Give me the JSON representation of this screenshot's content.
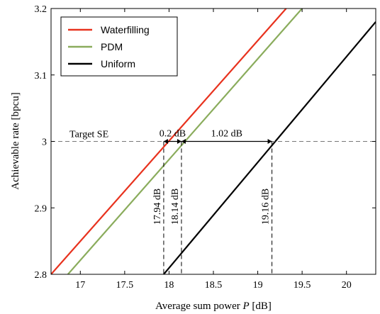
{
  "chart_data": {
    "type": "line",
    "xlabel_prefix": "Average sum power ",
    "xlabel_var": "P",
    "xlabel_suffix": " [dB]",
    "ylabel": "Achievable rate [bpcu]",
    "xlim": [
      16.67,
      20.33
    ],
    "ylim": [
      2.8,
      3.2
    ],
    "x_ticks": [
      17,
      17.5,
      18,
      18.5,
      19,
      19.5,
      20
    ],
    "x_tick_labels": [
      "17",
      "17.5",
      "18",
      "18.5",
      "19",
      "19.5",
      "20"
    ],
    "y_ticks": [
      2.8,
      2.9,
      3.0,
      3.1,
      3.2
    ],
    "y_tick_labels": [
      "2.8",
      "2.9",
      "3",
      "3.1",
      "3.2"
    ],
    "grid": false,
    "legend_position": "top-left",
    "series": [
      {
        "name": "Waterfilling",
        "color": "#e8321e",
        "x": [
          16.67,
          19.32
        ],
        "y": [
          2.8,
          3.2
        ]
      },
      {
        "name": "PDM",
        "color": "#8aac5c",
        "x": [
          16.86,
          19.5
        ],
        "y": [
          2.8,
          3.2
        ]
      },
      {
        "name": "Uniform",
        "color": "#000000",
        "x": [
          17.94,
          20.33
        ],
        "y": [
          2.8,
          3.18
        ]
      }
    ],
    "target": {
      "label": "Target SE",
      "y": 3.0
    },
    "markers": [
      {
        "x": 17.94,
        "label": "17.94 dB"
      },
      {
        "x": 18.14,
        "label": "18.14 dB"
      },
      {
        "x": 19.16,
        "label": "19.16 dB"
      }
    ],
    "gaps": [
      {
        "from": 17.94,
        "to": 18.14,
        "label": "0.2 dB"
      },
      {
        "from": 18.14,
        "to": 19.16,
        "label": "1.02 dB"
      }
    ]
  }
}
